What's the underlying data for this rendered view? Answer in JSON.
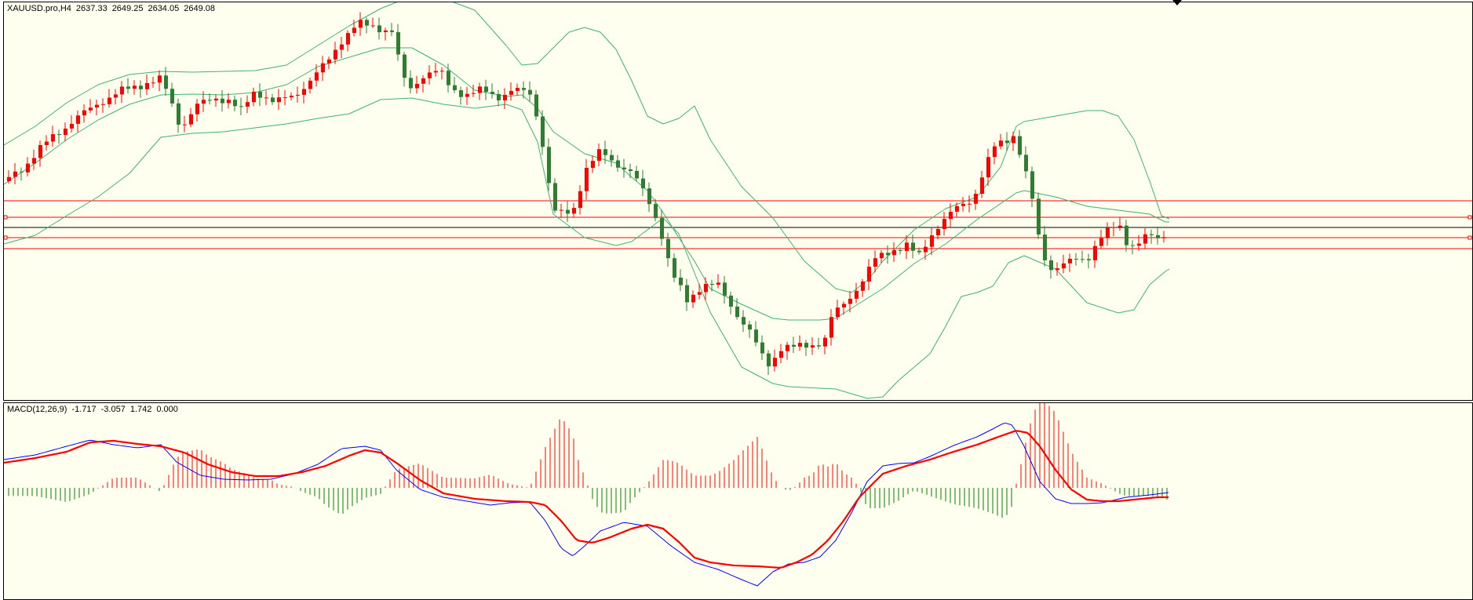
{
  "header": {
    "symbol": "XAUUSD.pro,H4",
    "ohlc": [
      "2637.33",
      "2649.25",
      "2634.05",
      "2649.08"
    ]
  },
  "macd": {
    "label": "MACD(12,26,9)",
    "values": [
      "-1.717",
      "-3.057",
      "1.742",
      "0.000"
    ]
  },
  "colors": {
    "background": "#fffff0",
    "bull_candle": "#ff0000",
    "bear_candle": "#2e7d32",
    "bollinger": "#3cb371",
    "hline_red": "#ff0000",
    "hline_black": "#000000",
    "macd_line": "#0000ff",
    "signal_line": "#ff0000",
    "hist_pos": "#ff0000",
    "hist_neg": "#008000"
  }
}
